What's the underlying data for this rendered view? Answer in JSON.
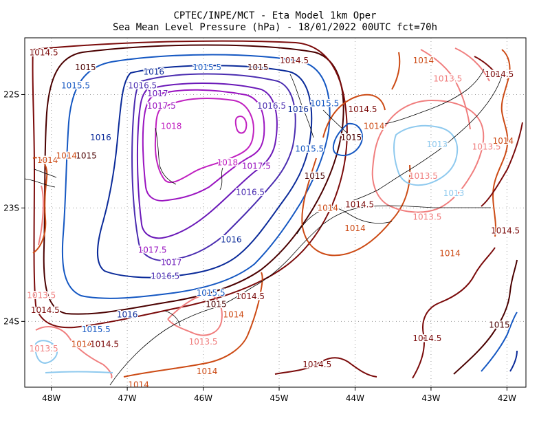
{
  "chart_data": {
    "type": "contour",
    "title": "CPTEC/INPE/MCT -  Eta Model 1km Oper",
    "subtitle": "Sea Mean Level Pressure (hPa) - 18/01/2022 00UTC fct=70h",
    "xlim": [
      -48.35,
      -41.75
    ],
    "ylim": [
      -24.58,
      -21.5
    ],
    "grid": "dotted",
    "x_ticks": [
      {
        "value": -48,
        "label": "48W"
      },
      {
        "value": -47,
        "label": "47W"
      },
      {
        "value": -46,
        "label": "46W"
      },
      {
        "value": -45,
        "label": "45W"
      },
      {
        "value": -44,
        "label": "44W"
      },
      {
        "value": -43,
        "label": "43W"
      },
      {
        "value": -42,
        "label": "42W"
      }
    ],
    "y_ticks": [
      {
        "value": -22,
        "label": "22S"
      },
      {
        "value": -23,
        "label": "23S"
      },
      {
        "value": -24,
        "label": "24S"
      }
    ],
    "level_colors": {
      "1013": "#8ec9ee",
      "1013.5": "#f07e7e",
      "1014": "#cc4a14",
      "1014.5": "#7a0a0a",
      "1015": "#4a0000",
      "1015.5": "#1457c2",
      "1016": "#0a2a99",
      "1016.5": "#4a2cb0",
      "1017": "#6a18b8",
      "1017.5": "#9a14c0",
      "1018": "#c020c0",
      "coast": "#000000"
    },
    "contour_labels": [
      {
        "text": "1014.5",
        "lon": -48.1,
        "lat": -21.63,
        "level": "1014.5"
      },
      {
        "text": "1015",
        "lon": -47.55,
        "lat": -21.76,
        "level": "1015"
      },
      {
        "text": "1016",
        "lon": -46.65,
        "lat": -21.8,
        "level": "1016"
      },
      {
        "text": "1015.5",
        "lon": -45.95,
        "lat": -21.76,
        "level": "1015.5"
      },
      {
        "text": "1015",
        "lon": -45.28,
        "lat": -21.76,
        "level": "1015"
      },
      {
        "text": "1014.5",
        "lon": -44.8,
        "lat": -21.7,
        "level": "1014.5"
      },
      {
        "text": "1014",
        "lon": -43.1,
        "lat": -21.7,
        "level": "1014"
      },
      {
        "text": "1014.5",
        "lon": -42.1,
        "lat": -21.82,
        "level": "1014.5"
      },
      {
        "text": "1013.5",
        "lon": -42.78,
        "lat": -21.86,
        "level": "1013.5"
      },
      {
        "text": "1015.5",
        "lon": -47.68,
        "lat": -21.92,
        "level": "1015.5"
      },
      {
        "text": "1016.5",
        "lon": -46.8,
        "lat": -21.92,
        "level": "1016.5"
      },
      {
        "text": "1017",
        "lon": -46.6,
        "lat": -21.99,
        "level": "1017"
      },
      {
        "text": "1017.5",
        "lon": -46.55,
        "lat": -22.1,
        "level": "1017.5"
      },
      {
        "text": "1016.5",
        "lon": -45.1,
        "lat": -22.1,
        "level": "1016.5"
      },
      {
        "text": "1016",
        "lon": -44.75,
        "lat": -22.13,
        "level": "1016"
      },
      {
        "text": "1015.5",
        "lon": -44.4,
        "lat": -22.08,
        "level": "1015.5"
      },
      {
        "text": "1014.5",
        "lon": -43.9,
        "lat": -22.13,
        "level": "1014.5"
      },
      {
        "text": "1018",
        "lon": -46.42,
        "lat": -22.28,
        "level": "1018"
      },
      {
        "text": "1014",
        "lon": -43.75,
        "lat": -22.28,
        "level": "1014"
      },
      {
        "text": "1016",
        "lon": -47.35,
        "lat": -22.38,
        "level": "1016"
      },
      {
        "text": "1015",
        "lon": -44.05,
        "lat": -22.38,
        "level": "1015"
      },
      {
        "text": "1013",
        "lon": -42.92,
        "lat": -22.44,
        "level": "1013"
      },
      {
        "text": "1013.5",
        "lon": -42.27,
        "lat": -22.46,
        "level": "1013.5"
      },
      {
        "text": "1014",
        "lon": -42.05,
        "lat": -22.41,
        "level": "1014"
      },
      {
        "text": "1015.5",
        "lon": -44.6,
        "lat": -22.48,
        "level": "1015.5"
      },
      {
        "text": "1014",
        "lon": -48.05,
        "lat": -22.58,
        "level": "1014"
      },
      {
        "text": "1014",
        "lon": -47.8,
        "lat": -22.54,
        "level": "1014"
      },
      {
        "text": "1015",
        "lon": -47.54,
        "lat": -22.54,
        "level": "1015"
      },
      {
        "text": "1018",
        "lon": -45.68,
        "lat": -22.6,
        "level": "1018"
      },
      {
        "text": "1017.5",
        "lon": -45.3,
        "lat": -22.63,
        "level": "1017.5"
      },
      {
        "text": "1015",
        "lon": -44.53,
        "lat": -22.72,
        "level": "1015"
      },
      {
        "text": "1013.5",
        "lon": -43.1,
        "lat": -22.72,
        "level": "1013.5"
      },
      {
        "text": "1013",
        "lon": -42.7,
        "lat": -22.87,
        "level": "1013"
      },
      {
        "text": "1016.5",
        "lon": -45.38,
        "lat": -22.86,
        "level": "1016.5"
      },
      {
        "text": "1014.5",
        "lon": -43.94,
        "lat": -22.97,
        "level": "1014.5"
      },
      {
        "text": "1014",
        "lon": -44.36,
        "lat": -23.0,
        "level": "1014"
      },
      {
        "text": "1013.5",
        "lon": -43.05,
        "lat": -23.08,
        "level": "1013.5"
      },
      {
        "text": "1014",
        "lon": -44.0,
        "lat": -23.18,
        "level": "1014"
      },
      {
        "text": "1014.5",
        "lon": -42.02,
        "lat": -23.2,
        "level": "1014.5"
      },
      {
        "text": "1016",
        "lon": -45.63,
        "lat": -23.28,
        "level": "1016"
      },
      {
        "text": "1017.5",
        "lon": -46.67,
        "lat": -23.37,
        "level": "1017.5"
      },
      {
        "text": "1014",
        "lon": -42.75,
        "lat": -23.4,
        "level": "1014"
      },
      {
        "text": "1017",
        "lon": -46.42,
        "lat": -23.48,
        "level": "1017"
      },
      {
        "text": "1016.5",
        "lon": -46.5,
        "lat": -23.6,
        "level": "1016.5"
      },
      {
        "text": "1013.5",
        "lon": -48.13,
        "lat": -23.77,
        "level": "1013.5"
      },
      {
        "text": "1015.5",
        "lon": -45.9,
        "lat": -23.75,
        "level": "1015.5"
      },
      {
        "text": "1014.5",
        "lon": -45.38,
        "lat": -23.78,
        "level": "1014.5"
      },
      {
        "text": "1015",
        "lon": -45.83,
        "lat": -23.85,
        "level": "1015"
      },
      {
        "text": "1014.5",
        "lon": -48.08,
        "lat": -23.9,
        "level": "1014.5"
      },
      {
        "text": "1016",
        "lon": -47.0,
        "lat": -23.94,
        "level": "1016"
      },
      {
        "text": "1014",
        "lon": -45.6,
        "lat": -23.94,
        "level": "1014"
      },
      {
        "text": "1015.5",
        "lon": -47.41,
        "lat": -24.07,
        "level": "1015.5"
      },
      {
        "text": "1015",
        "lon": -42.1,
        "lat": -24.03,
        "level": "1015"
      },
      {
        "text": "1014.5",
        "lon": -43.05,
        "lat": -24.15,
        "level": "1014.5"
      },
      {
        "text": "1013.5",
        "lon": -46.0,
        "lat": -24.18,
        "level": "1013.5"
      },
      {
        "text": "1013.5",
        "lon": -48.1,
        "lat": -24.24,
        "level": "1013.5"
      },
      {
        "text": "1014",
        "lon": -47.6,
        "lat": -24.2,
        "level": "1014"
      },
      {
        "text": "1014.5",
        "lon": -47.3,
        "lat": -24.2,
        "level": "1014.5"
      },
      {
        "text": "1014.5",
        "lon": -44.5,
        "lat": -24.38,
        "level": "1014.5"
      },
      {
        "text": "1014",
        "lon": -45.95,
        "lat": -24.44,
        "level": "1014"
      },
      {
        "text": "1014",
        "lon": -46.85,
        "lat": -24.56,
        "level": "1014"
      }
    ]
  }
}
